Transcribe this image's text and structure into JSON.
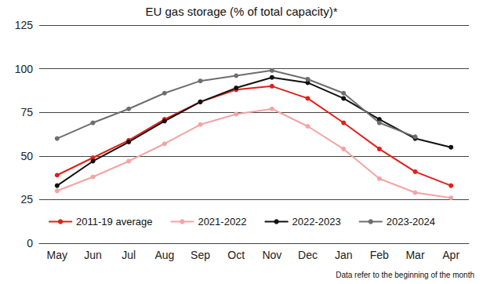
{
  "chart_data": {
    "type": "line",
    "title": "EU gas storage (% of total capacity)*",
    "note": "Data refer to the beginning of the month",
    "categories": [
      "May",
      "Jun",
      "Jul",
      "Aug",
      "Sep",
      "Oct",
      "Nov",
      "Dec",
      "Jan",
      "Feb",
      "Mar",
      "Apr"
    ],
    "series": [
      {
        "name": "2011-19 average",
        "color": "#e0201b",
        "values": [
          39,
          49,
          59,
          71,
          81,
          88,
          90,
          83,
          69,
          54,
          41,
          33
        ]
      },
      {
        "name": "2021-2022",
        "color": "#f4a3a3",
        "values": [
          30,
          38,
          47,
          57,
          68,
          74,
          77,
          67,
          54,
          37,
          29,
          26
        ]
      },
      {
        "name": "2022-2023",
        "color": "#111111",
        "values": [
          33,
          47,
          58,
          70,
          81,
          89,
          95,
          92,
          83,
          71,
          60,
          55
        ]
      },
      {
        "name": "2023-2024",
        "color": "#6e6e6e",
        "values": [
          60,
          69,
          77,
          86,
          93,
          96,
          99,
          94,
          86,
          69,
          61,
          null
        ]
      }
    ],
    "ylim": [
      0,
      125
    ],
    "yticks": [
      0,
      25,
      50,
      75,
      100,
      125
    ],
    "grid": true,
    "legend": "bottom",
    "marker": "circle"
  }
}
